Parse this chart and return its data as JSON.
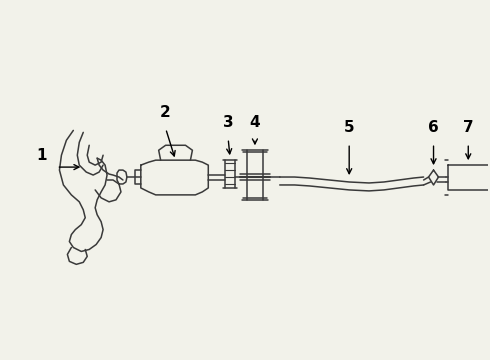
{
  "background_color": "#f2f2ea",
  "line_color": "#3a3a3a",
  "text_color": "#000000",
  "figure_width": 4.9,
  "figure_height": 3.6,
  "dpi": 100
}
